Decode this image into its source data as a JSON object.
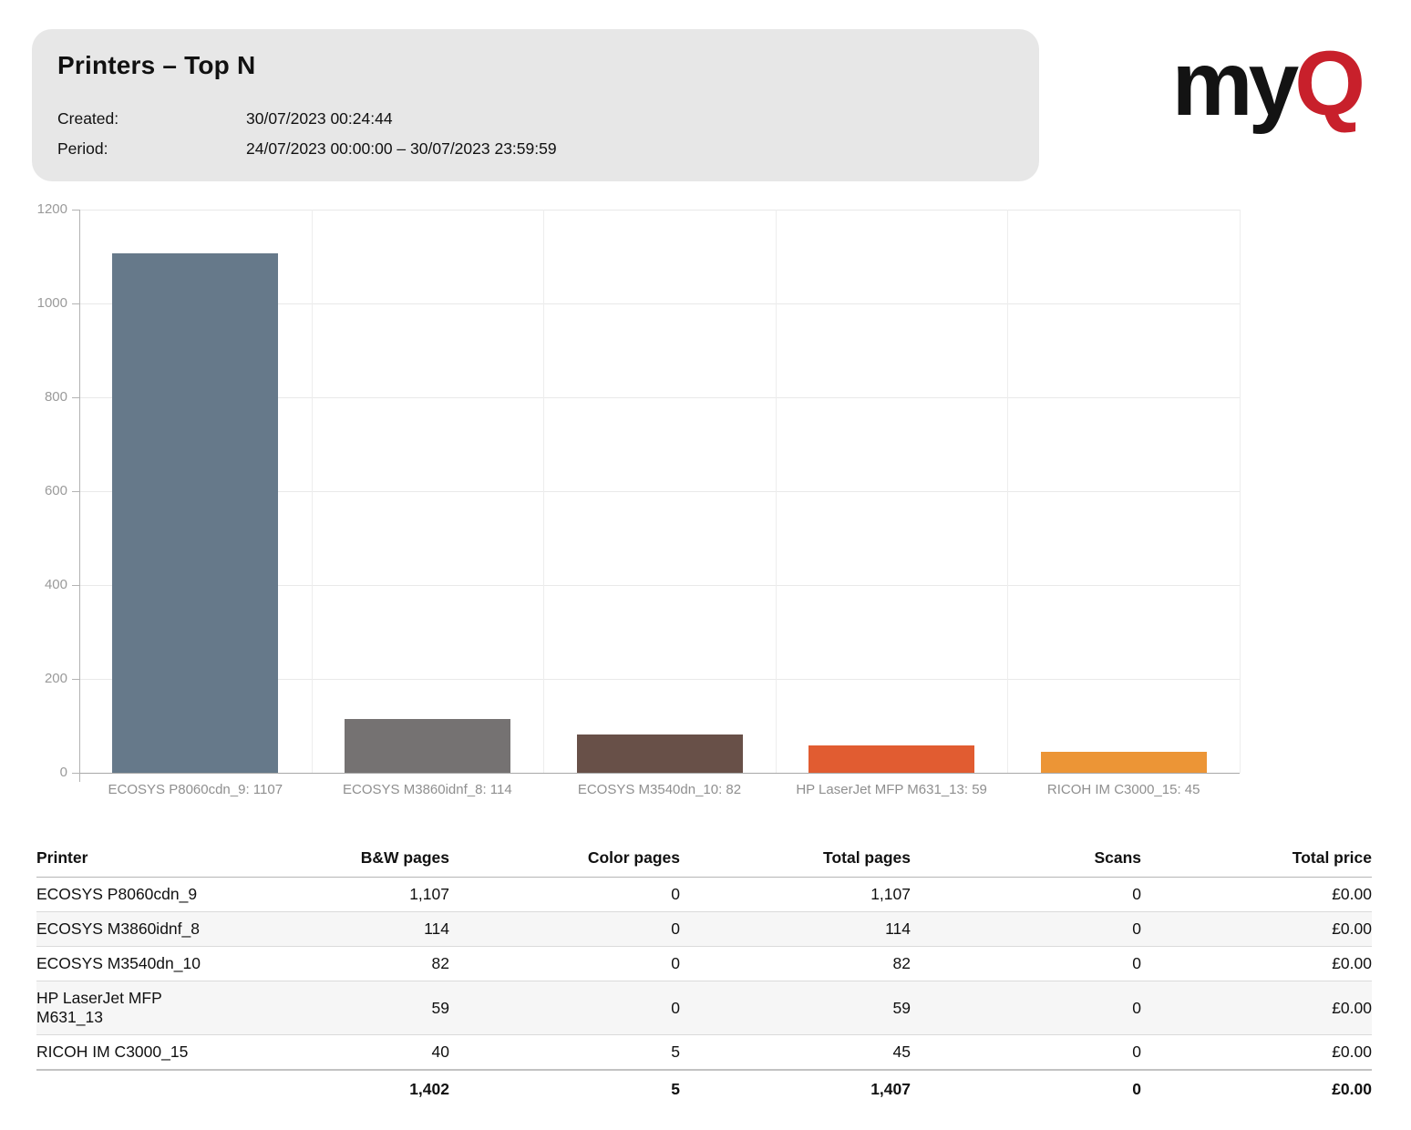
{
  "report": {
    "title": "Printers – Top N",
    "created_label": "Created:",
    "created_value": "30/07/2023 00:24:44",
    "period_label": "Period:",
    "period_value": "24/07/2023 00:00:00 – 30/07/2023 23:59:59"
  },
  "logo": {
    "text_black": "my",
    "text_red": "Q",
    "black_color": "#131313",
    "red_color": "#c8202b"
  },
  "chart_data": {
    "type": "bar",
    "title": "",
    "xlabel": "",
    "ylabel": "",
    "categories": [
      "ECOSYS P8060cdn_9: 1107",
      "ECOSYS M3860idnf_8: 114",
      "ECOSYS M3540dn_10: 82",
      "HP LaserJet MFP M631_13: 59",
      "RICOH IM C3000_15: 45"
    ],
    "values": [
      1107,
      114,
      82,
      59,
      45
    ],
    "bar_colors": [
      "#66798a",
      "#757272",
      "#685048",
      "#e15c31",
      "#ec9536"
    ],
    "ylim": [
      0,
      1200
    ],
    "yticks": [
      0,
      200,
      400,
      600,
      800,
      1000,
      1200
    ],
    "grid": true,
    "legend": "none"
  },
  "table": {
    "columns": [
      "Printer",
      "B&W pages",
      "Color pages",
      "Total pages",
      "Scans",
      "Total price"
    ],
    "rows": [
      [
        "ECOSYS P8060cdn_9",
        "1,107",
        "0",
        "1,107",
        "0",
        "£0.00"
      ],
      [
        "ECOSYS M3860idnf_8",
        "114",
        "0",
        "114",
        "0",
        "£0.00"
      ],
      [
        "ECOSYS M3540dn_10",
        "82",
        "0",
        "82",
        "0",
        "£0.00"
      ],
      [
        "HP LaserJet MFP M631_13",
        "59",
        "0",
        "59",
        "0",
        "£0.00"
      ],
      [
        "RICOH IM C3000_15",
        "40",
        "5",
        "45",
        "0",
        "£0.00"
      ]
    ],
    "totals": [
      "",
      "1,402",
      "5",
      "1,407",
      "0",
      "£0.00"
    ]
  }
}
